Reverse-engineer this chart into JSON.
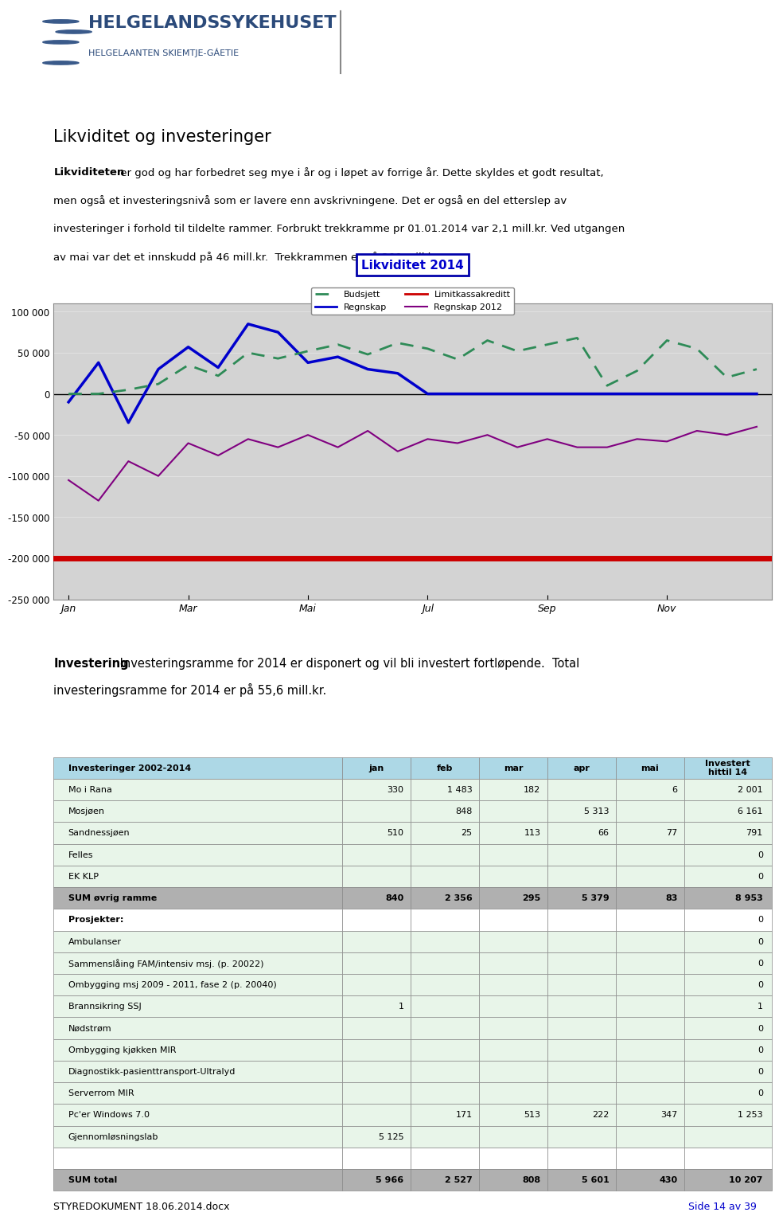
{
  "title_main": "Likviditet og investeringer",
  "paragraph1_bold": "Likviditeten",
  "paragraph1_rest": " er god og har forbedret seg mye i år og i løpet av forrige år. Dette skyldes et godt resultat,",
  "paragraph_lines": [
    "men også et investeringsnivå som er lavere enn avskrivningene. Det er også en del etterslep av",
    "investeringer i forhold til tildelte rammer. Forbrukt trekkramme pr 01.01.2014 var 2,1 mill.kr. Ved utgangen",
    "av mai var det et innskudd på 46 mill.kr.  Trekkrammen er på 200 mill.kr."
  ],
  "chart_title": "Likviditet 2014",
  "x_labels": [
    "Jan",
    "Mar",
    "Mai",
    "Jul",
    "Sep",
    "Nov"
  ],
  "x_ticks": [
    0,
    4,
    8,
    12,
    16,
    20
  ],
  "n_points": 24,
  "ylim": [
    -250000,
    110000
  ],
  "yticks": [
    100000,
    50000,
    0,
    -50000,
    -100000,
    -150000,
    -200000,
    -250000
  ],
  "ytick_labels": [
    "100 000",
    "50 000",
    "0",
    "-50 000",
    "-100 000",
    "-150 000",
    "-200 000",
    "-250 000"
  ],
  "regnskap_2014": [
    -10000,
    38000,
    -35000,
    30000,
    57000,
    32000,
    85000,
    75000,
    38000,
    45000,
    30000,
    25000,
    0,
    0,
    0,
    0,
    0,
    0,
    0,
    0,
    0,
    0,
    0,
    0
  ],
  "budsjett": [
    0,
    0,
    5000,
    12000,
    35000,
    22000,
    50000,
    43000,
    52000,
    60000,
    48000,
    62000,
    55000,
    42000,
    65000,
    52000,
    60000,
    68000,
    10000,
    28000,
    65000,
    55000,
    20000,
    30000
  ],
  "regnskap_2012": [
    -105000,
    -130000,
    -82000,
    -100000,
    -60000,
    -75000,
    -55000,
    -65000,
    -50000,
    -65000,
    -45000,
    -70000,
    -55000,
    -60000,
    -50000,
    -65000,
    -55000,
    -65000,
    -65000,
    -55000,
    -58000,
    -45000,
    -50000,
    -40000
  ],
  "limitkassakreditt": -200000,
  "chart_bg": "#d3d3d3",
  "regnskap_color": "#0000cc",
  "budsjett_color": "#2e8b57",
  "regnskap2012_color": "#800080",
  "limit_color": "#cc0000",
  "invest_bold": "Investering",
  "invest_text": " Investeringsramme for 2014 er disponert og vil bli investert fortløpende.  Total investeringsramme for 2014 er på 55,6 mill.kr.",
  "table_header": [
    "Investeringer 2002-2014",
    "jan",
    "feb",
    "mar",
    "apr",
    "mai",
    "Investert\nhittil 14"
  ],
  "table_rows": [
    [
      "Mo i Rana",
      "330",
      "1 483",
      "182",
      "",
      "6",
      "2 001"
    ],
    [
      "Mosjøen",
      "",
      "848",
      "",
      "5 313",
      "",
      "6 161"
    ],
    [
      "Sandnessjøen",
      "510",
      "25",
      "113",
      "66",
      "77",
      "791"
    ],
    [
      "Felles",
      "",
      "",
      "",
      "",
      "",
      "0"
    ],
    [
      "EK KLP",
      "",
      "",
      "",
      "",
      "",
      "0"
    ],
    [
      "SUM øvrig ramme",
      "840",
      "2 356",
      "295",
      "5 379",
      "83",
      "8 953"
    ],
    [
      "Prosjekter:",
      "",
      "",
      "",
      "",
      "",
      "0"
    ],
    [
      "Ambulanser",
      "",
      "",
      "",
      "",
      "",
      "0"
    ],
    [
      "Sammenslåing FAM/intensiv msj. (p. 20022)",
      "",
      "",
      "",
      "",
      "",
      "0"
    ],
    [
      "Ombygging msj 2009 - 2011, fase 2 (p. 20040)",
      "",
      "",
      "",
      "",
      "",
      "0"
    ],
    [
      "Brannsikring SSJ",
      "1",
      "",
      "",
      "",
      "",
      "1"
    ],
    [
      "Nødstrøm",
      "",
      "",
      "",
      "",
      "",
      "0"
    ],
    [
      "Ombygging kjøkken MIR",
      "",
      "",
      "",
      "",
      "",
      "0"
    ],
    [
      "Diagnostikk-pasienttransport-Ultralyd",
      "",
      "",
      "",
      "",
      "",
      "0"
    ],
    [
      "Serverrom MIR",
      "",
      "",
      "",
      "",
      "",
      "0"
    ],
    [
      "Pc'er Windows 7.0",
      "",
      "171",
      "513",
      "222",
      "347",
      "1 253"
    ],
    [
      "Gjennomløsningslab",
      "5 125",
      "",
      "",
      "",
      "",
      ""
    ],
    [
      "",
      "",
      "",
      "",
      "",
      "",
      ""
    ],
    [
      "SUM total",
      "5 966",
      "2 527",
      "808",
      "5 601",
      "430",
      "10 207"
    ]
  ],
  "footer_left": "STYREDOKUMENT 18.06.2014.docx",
  "footer_right": "Side 14 av 39",
  "header_color": "#add8e6",
  "sum_row_color": "#b0b0b0",
  "data_row_color": "#e8f5e9",
  "white": "#ffffff"
}
